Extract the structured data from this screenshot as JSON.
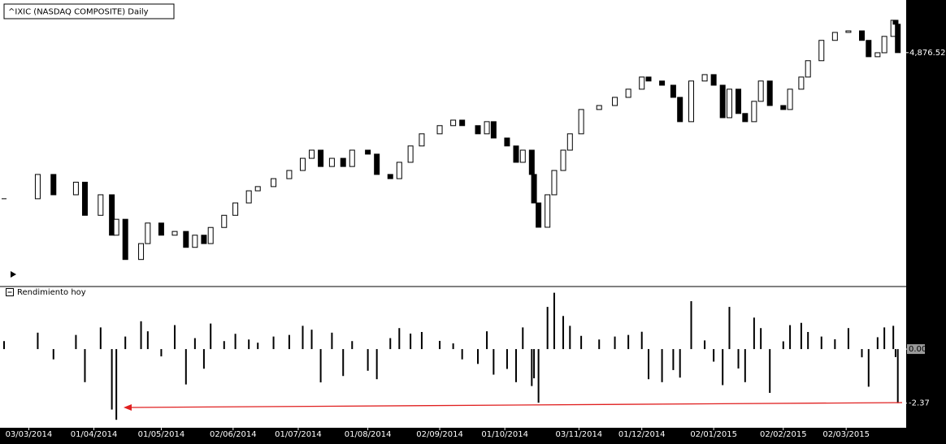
{
  "chart_data": [
    {
      "type": "candlestick",
      "title": "^IXIC (NASDAQ COMPOSITE) Daily",
      "x": [
        "2014-02-20",
        "2014-03-07",
        "2014-03-14",
        "2014-03-24",
        "2014-03-28",
        "2014-04-04",
        "2014-04-09",
        "2014-04-11",
        "2014-04-15",
        "2014-04-22",
        "2014-04-25",
        "2014-05-01",
        "2014-05-07",
        "2014-05-12",
        "2014-05-16",
        "2014-05-20",
        "2014-05-23",
        "2014-05-29",
        "2014-06-03",
        "2014-06-09",
        "2014-06-13",
        "2014-06-20",
        "2014-06-27",
        "2014-07-03",
        "2014-07-07",
        "2014-07-11",
        "2014-07-16",
        "2014-07-21",
        "2014-07-25",
        "2014-08-01",
        "2014-08-05",
        "2014-08-11",
        "2014-08-15",
        "2014-08-20",
        "2014-08-25",
        "2014-09-02",
        "2014-09-08",
        "2014-09-12",
        "2014-09-19",
        "2014-09-23",
        "2014-09-26",
        "2014-10-02",
        "2014-10-06",
        "2014-10-09",
        "2014-10-13",
        "2014-10-14",
        "2014-10-16",
        "2014-10-20",
        "2014-10-23",
        "2014-10-27",
        "2014-10-30",
        "2014-11-04",
        "2014-11-12",
        "2014-11-19",
        "2014-11-25",
        "2014-12-01",
        "2014-12-04",
        "2014-12-10",
        "2014-12-15",
        "2014-12-18",
        "2014-12-23",
        "2014-12-29",
        "2015-01-02",
        "2015-01-06",
        "2015-01-09",
        "2015-01-13",
        "2015-01-16",
        "2015-01-20",
        "2015-01-23",
        "2015-01-27",
        "2015-02-02",
        "2015-02-05",
        "2015-02-10",
        "2015-02-13",
        "2015-02-19",
        "2015-02-25",
        "2015-03-03",
        "2015-03-09",
        "2015-03-12",
        "2015-03-16",
        "2015-03-19",
        "2015-03-23",
        "2015-03-24",
        "2015-03-25"
      ],
      "values": [
        4215,
        4325,
        4233,
        4290,
        4140,
        4233,
        4050,
        4122,
        3940,
        4012,
        4105,
        4050,
        4067,
        3995,
        4050,
        4012,
        4085,
        4140,
        4196,
        4251,
        4270,
        4306,
        4343,
        4398,
        4435,
        4361,
        4398,
        4361,
        4435,
        4417,
        4325,
        4306,
        4380,
        4454,
        4509,
        4546,
        4571,
        4546,
        4509,
        4564,
        4490,
        4454,
        4380,
        4435,
        4325,
        4196,
        4086,
        4233,
        4343,
        4435,
        4509,
        4619,
        4637,
        4674,
        4711,
        4766,
        4748,
        4729,
        4674,
        4564,
        4748,
        4777,
        4729,
        4582,
        4711,
        4601,
        4564,
        4656,
        4748,
        4637,
        4619,
        4711,
        4766,
        4840,
        4932,
        4968,
        4975,
        4932,
        4858,
        4876,
        4950,
        5023,
        5005,
        4876.52
      ],
      "up_color": "#ffffff",
      "down_color": "#000000",
      "xlim": [
        "2014-02-20",
        "2015-03-28"
      ],
      "ylim": [
        3847,
        5078
      ],
      "yticks": [
        {
          "value": 4876.52,
          "label": "4,876.52"
        }
      ]
    },
    {
      "type": "bar",
      "title": "Rendimiento hoy",
      "x": [
        "2014-02-20",
        "2014-03-07",
        "2014-03-14",
        "2014-03-24",
        "2014-03-28",
        "2014-04-04",
        "2014-04-09",
        "2014-04-11",
        "2014-04-15",
        "2014-04-22",
        "2014-04-25",
        "2014-05-01",
        "2014-05-07",
        "2014-05-12",
        "2014-05-16",
        "2014-05-20",
        "2014-05-23",
        "2014-05-29",
        "2014-06-03",
        "2014-06-09",
        "2014-06-13",
        "2014-06-20",
        "2014-06-27",
        "2014-07-03",
        "2014-07-07",
        "2014-07-11",
        "2014-07-16",
        "2014-07-21",
        "2014-07-25",
        "2014-08-01",
        "2014-08-05",
        "2014-08-11",
        "2014-08-15",
        "2014-08-20",
        "2014-08-25",
        "2014-09-02",
        "2014-09-08",
        "2014-09-12",
        "2014-09-19",
        "2014-09-23",
        "2014-09-26",
        "2014-10-02",
        "2014-10-06",
        "2014-10-09",
        "2014-10-13",
        "2014-10-14",
        "2014-10-16",
        "2014-10-20",
        "2014-10-23",
        "2014-10-27",
        "2014-10-30",
        "2014-11-04",
        "2014-11-12",
        "2014-11-19",
        "2014-11-25",
        "2014-12-01",
        "2014-12-04",
        "2014-12-10",
        "2014-12-15",
        "2014-12-18",
        "2014-12-23",
        "2014-12-29",
        "2015-01-02",
        "2015-01-06",
        "2015-01-09",
        "2015-01-13",
        "2015-01-16",
        "2015-01-20",
        "2015-01-23",
        "2015-01-27",
        "2015-02-02",
        "2015-02-05",
        "2015-02-10",
        "2015-02-13",
        "2015-02-19",
        "2015-02-25",
        "2015-03-03",
        "2015-03-09",
        "2015-03-12",
        "2015-03-16",
        "2015-03-19",
        "2015-03-23",
        "2015-03-24",
        "2015-03-25"
      ],
      "values": [
        0.35,
        0.72,
        -0.45,
        0.62,
        -1.45,
        0.95,
        -2.65,
        -3.1,
        0.55,
        1.22,
        0.78,
        -0.32,
        1.05,
        -1.55,
        0.48,
        -0.86,
        1.12,
        0.35,
        0.67,
        0.42,
        0.28,
        0.55,
        0.62,
        1.02,
        0.85,
        -1.46,
        0.72,
        -1.18,
        0.35,
        -0.95,
        -1.32,
        0.48,
        0.92,
        0.68,
        0.75,
        0.36,
        0.25,
        -0.45,
        -0.65,
        0.78,
        -1.12,
        -0.87,
        -1.45,
        0.95,
        -1.62,
        -1.28,
        -2.35,
        1.85,
        2.47,
        1.45,
        1.02,
        0.58,
        0.42,
        0.55,
        0.62,
        0.76,
        -1.32,
        -1.45,
        -0.92,
        -1.25,
        2.1,
        0.38,
        -0.55,
        -1.58,
        1.85,
        -0.85,
        -1.45,
        1.38,
        0.92,
        -1.92,
        0.34,
        1.05,
        1.15,
        0.75,
        0.55,
        0.43,
        0.92,
        -0.36,
        -1.65,
        0.52,
        0.95,
        1.02,
        -0.35,
        -2.37
      ],
      "color": "#000000",
      "xlim": [
        "2014-02-20",
        "2015-03-28"
      ],
      "ylim": [
        -3.2,
        2.6
      ],
      "yticks": [
        {
          "value": 0,
          "label": "0.00"
        },
        {
          "value": -2.37,
          "label": "-2.37"
        }
      ],
      "xticks": [
        {
          "value": "2014-03-03",
          "label": "03/03/2014"
        },
        {
          "value": "2014-04-01",
          "label": "01/04/2014"
        },
        {
          "value": "2014-05-01",
          "label": "01/05/2014"
        },
        {
          "value": "2014-06-02",
          "label": "02/06/2014"
        },
        {
          "value": "2014-07-01",
          "label": "01/07/2014"
        },
        {
          "value": "2014-08-01",
          "label": "01/08/2014"
        },
        {
          "value": "2014-09-02",
          "label": "02/09/2014"
        },
        {
          "value": "2014-10-01",
          "label": "01/10/2014"
        },
        {
          "value": "2014-11-03",
          "label": "03/11/2014"
        },
        {
          "value": "2014-12-01",
          "label": "01/12/2014"
        },
        {
          "value": "2015-01-02",
          "label": "02/01/2015"
        },
        {
          "value": "2015-02-02",
          "label": "02/02/2015"
        },
        {
          "value": "2015-03-02",
          "label": "02/03/2015"
        }
      ]
    }
  ]
}
